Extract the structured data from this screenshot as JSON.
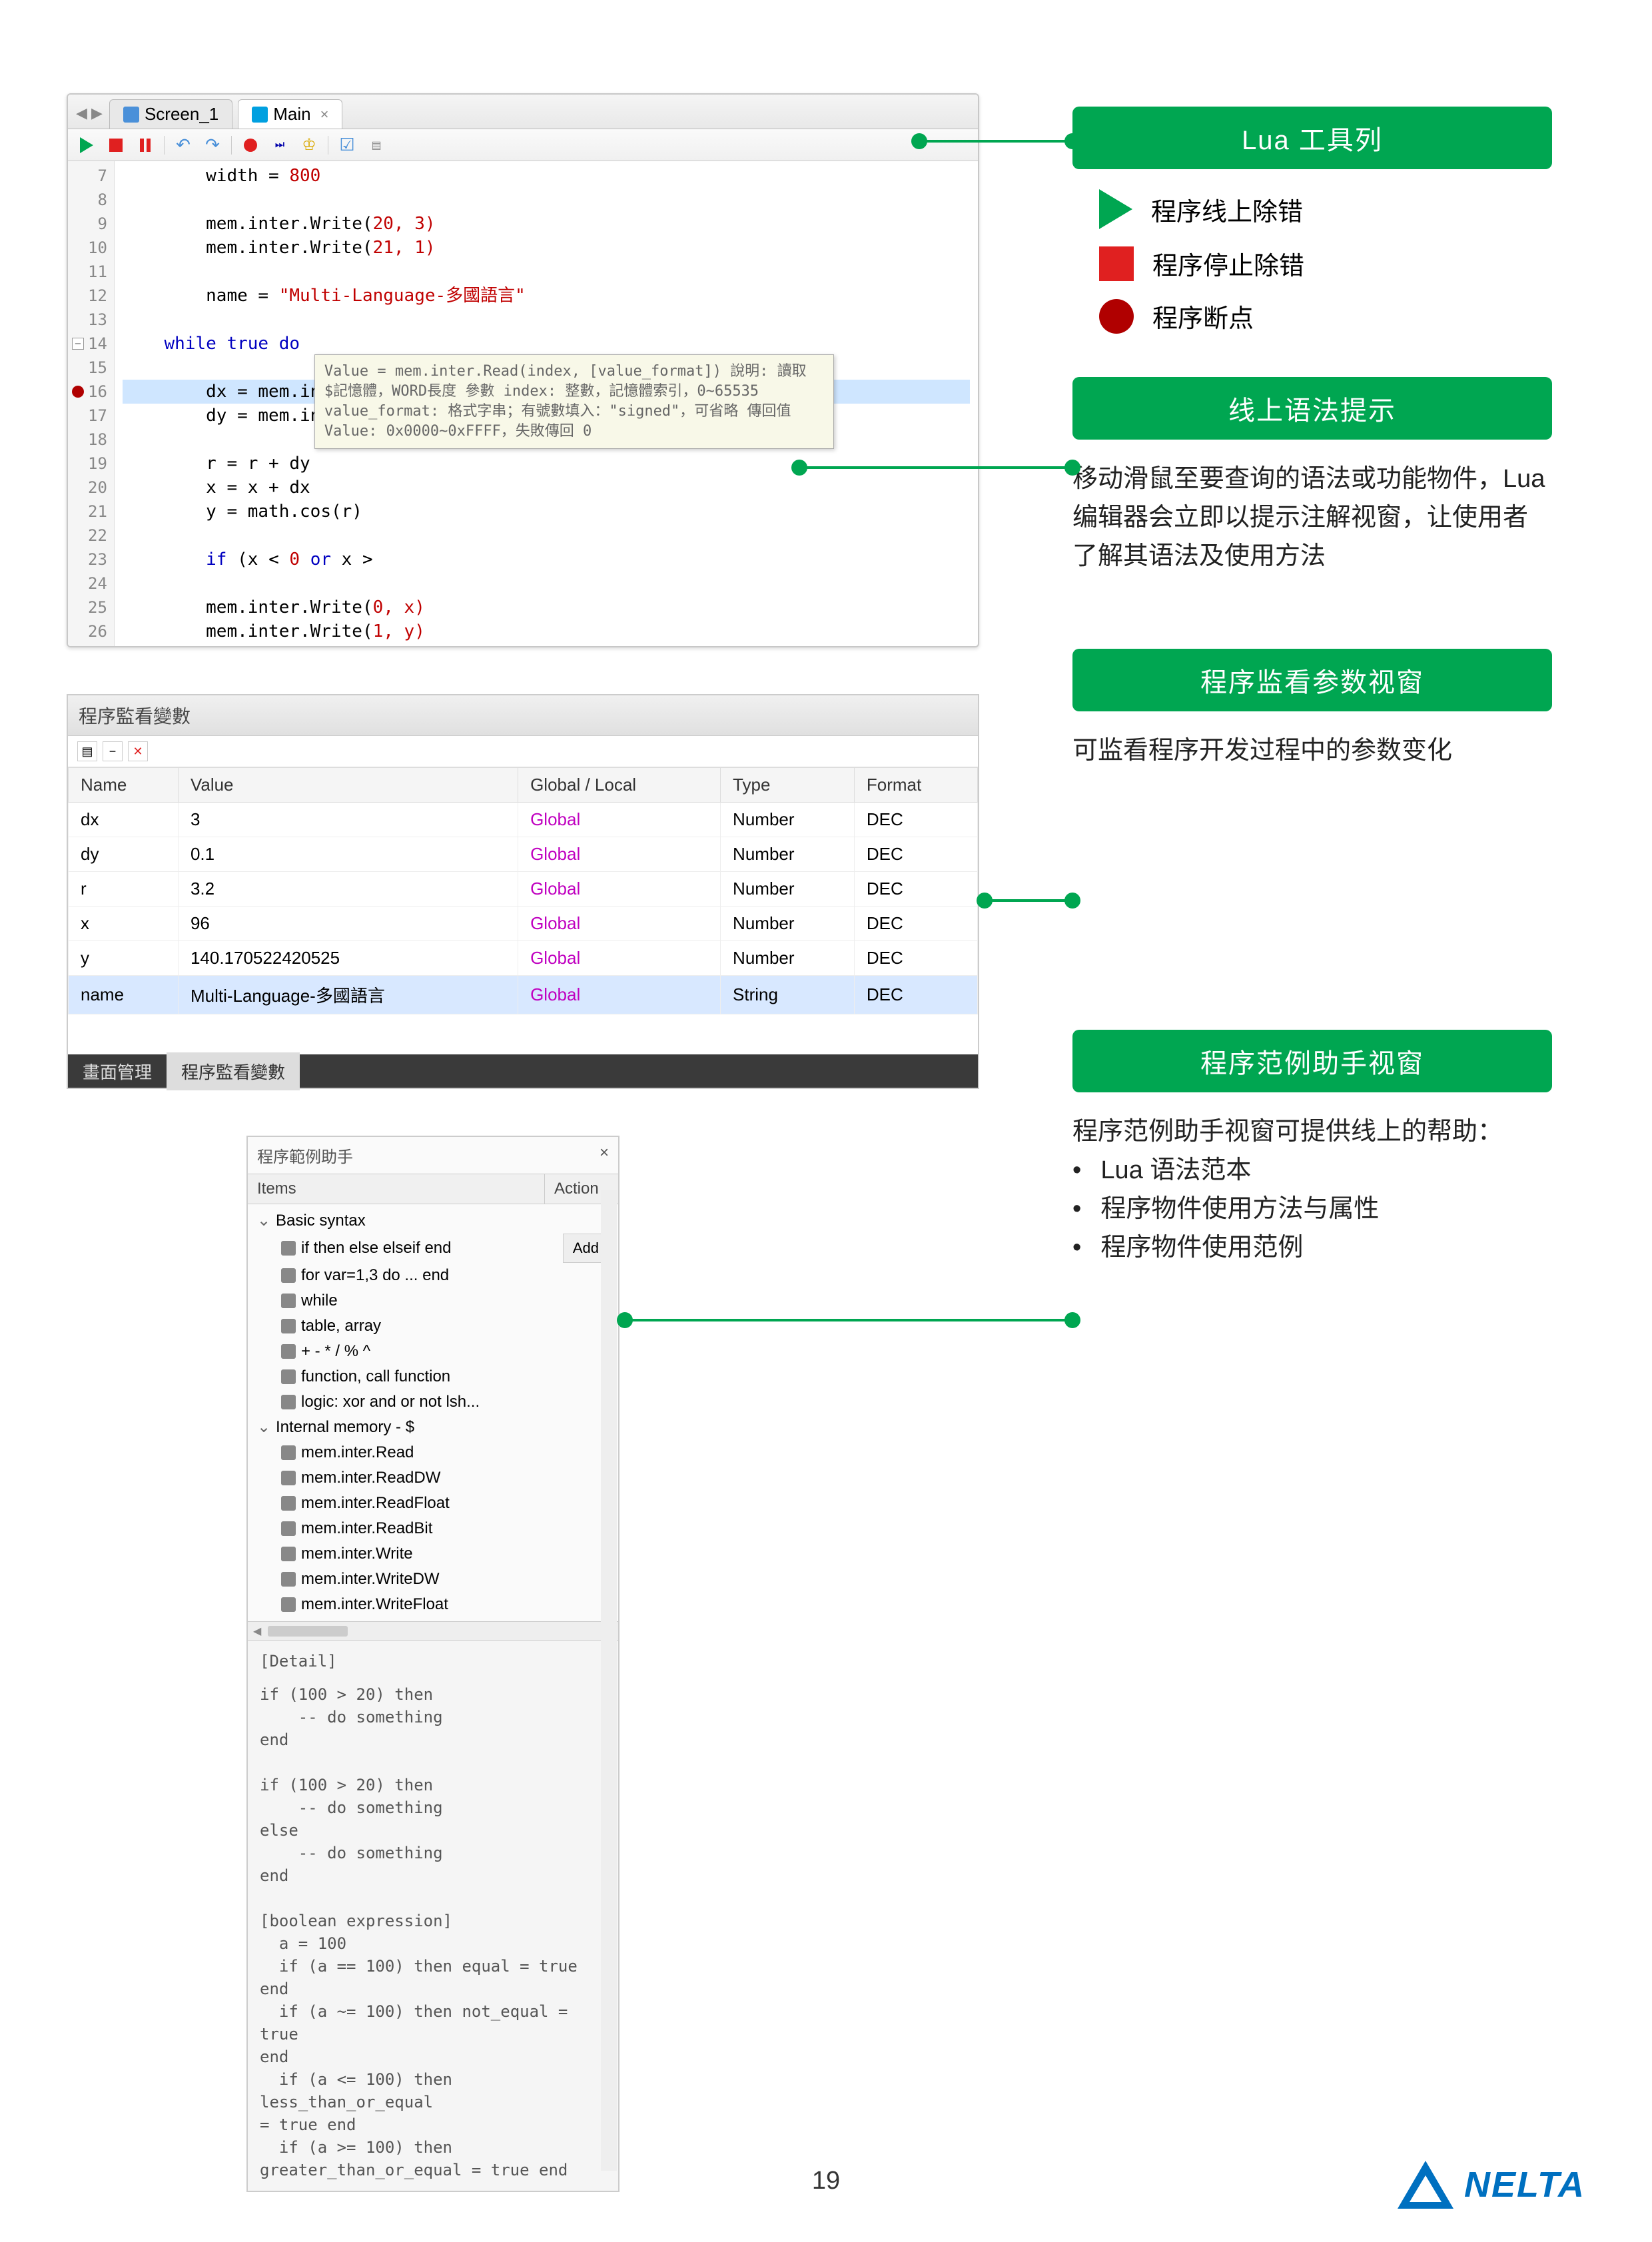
{
  "editor": {
    "tabs": [
      {
        "label": "Screen_1",
        "active": false
      },
      {
        "label": "Main",
        "active": true
      }
    ],
    "lines": [
      {
        "num": "7",
        "text": "        width = ",
        "tail": "800",
        "tailClass": "num"
      },
      {
        "num": "8",
        "text": ""
      },
      {
        "num": "9",
        "text": "        mem.inter.Write(",
        "tail": "20, 3)",
        "tailClass": "num"
      },
      {
        "num": "10",
        "text": "        mem.inter.Write(",
        "tail": "21, 1)",
        "tailClass": "num"
      },
      {
        "num": "11",
        "text": ""
      },
      {
        "num": "12",
        "text": "        name = ",
        "tail": "\"Multi-Language-多國語言\"",
        "tailClass": "str"
      },
      {
        "num": "13",
        "text": ""
      },
      {
        "num": "14",
        "text": "    ",
        "kw": "while true do",
        "fold": true
      },
      {
        "num": "15",
        "text": ""
      },
      {
        "num": "16",
        "text": "        dx = mem.inter.Read(",
        "tail": "20)",
        "tailClass": "num",
        "hl": true,
        "bp": true
      },
      {
        "num": "17",
        "text": "        dy = mem.inter.R"
      },
      {
        "num": "18",
        "text": ""
      },
      {
        "num": "19",
        "text": "        r = r + dy"
      },
      {
        "num": "20",
        "text": "        x = x + dx"
      },
      {
        "num": "21",
        "text": "        y = math.cos(r)"
      },
      {
        "num": "22",
        "text": ""
      },
      {
        "num": "23",
        "text": "        ",
        "kw": "if",
        "text2": " (x < ",
        "num2": "0 ",
        "kw2": "or",
        "text3": " x >"
      },
      {
        "num": "24",
        "text": ""
      },
      {
        "num": "25",
        "text": "        mem.inter.Write(",
        "tail": "0, x)",
        "tailClass": "num"
      },
      {
        "num": "26",
        "text": "        mem.inter.Write(",
        "tail": "1, y)",
        "tailClass": "num"
      }
    ],
    "tooltip": "Value = mem.inter.Read(index, [value_format])\n說明: 讀取 $記憶體，WORD長度\n參數\n  index: 整數，記憶體索引，0~65535\n  value_format: 格式字串；有號數填入：\"signed\"，可省略\n傳回值\n  Value: 0x0000~0xFFFF，失敗傳回 0"
  },
  "monitor": {
    "title": "程序監看變數",
    "columns": [
      "Name",
      "Value",
      "Global / Local",
      "Type",
      "Format"
    ],
    "rows": [
      {
        "name": "dx",
        "value": "3",
        "scope": "Global",
        "type": "Number",
        "format": "DEC"
      },
      {
        "name": "dy",
        "value": "0.1",
        "scope": "Global",
        "type": "Number",
        "format": "DEC"
      },
      {
        "name": "r",
        "value": "3.2",
        "scope": "Global",
        "type": "Number",
        "format": "DEC"
      },
      {
        "name": "x",
        "value": "96",
        "scope": "Global",
        "type": "Number",
        "format": "DEC"
      },
      {
        "name": "y",
        "value": "140.170522420525",
        "scope": "Global",
        "type": "Number",
        "format": "DEC"
      },
      {
        "name": "name",
        "value": "Multi-Language-多國語言",
        "scope": "Global",
        "type": "String",
        "format": "DEC",
        "selected": true
      }
    ],
    "footerTabs": [
      "畫面管理",
      "程序監看變數"
    ]
  },
  "helper": {
    "title": "程序範例助手",
    "itemsHeader": "Items",
    "actionHeader": "Action",
    "addLabel": "Add",
    "groups": [
      {
        "label": "Basic syntax",
        "items": [
          "if then else elseif end",
          "for var=1,3 do ... end",
          "while",
          "table, array",
          "+ - * / % ^",
          "function, call function",
          "logic: xor and or not lsh..."
        ]
      },
      {
        "label": "Internal memory - $",
        "items": [
          "mem.inter.Read",
          "mem.inter.ReadDW",
          "mem.inter.ReadFloat",
          "mem.inter.ReadBit",
          "mem.inter.Write",
          "mem.inter.WriteDW",
          "mem.inter.WriteFloat"
        ]
      }
    ],
    "detailTitle": "[Detail]",
    "detail": "if (100 > 20) then\n    -- do something\nend\n\nif (100 > 20) then\n    -- do something\nelse\n    -- do something\nend\n\n[boolean expression]\n  a = 100\n  if (a == 100) then equal = true end\n  if (a ~= 100) then not_equal = true\nend\n  if (a <= 100) then less_than_or_equal\n= true end\n  if (a >= 100) then\ngreater_than_or_equal = true end"
  },
  "annotations": {
    "badge1": "Lua 工具列",
    "legend1": "程序线上除错",
    "legend2": "程序停止除错",
    "legend3": "程序断点",
    "badge2": "线上语法提示",
    "text2": "移动滑鼠至要查询的语法或功能物件，Lua 编辑器会立即以提示注解视窗，让使用者了解其语法及使用方法",
    "badge3": "程序监看参数视窗",
    "text3": "可监看程序开发过程中的参数变化",
    "badge4": "程序范例助手视窗",
    "text4_intro": "程序范例助手视窗可提供线上的帮助：",
    "text4_b1": "Lua 语法范本",
    "text4_b2": "程序物件使用方法与属性",
    "text4_b3": "程序物件使用范例"
  },
  "pageNumber": "19",
  "logoText": "NELTA"
}
